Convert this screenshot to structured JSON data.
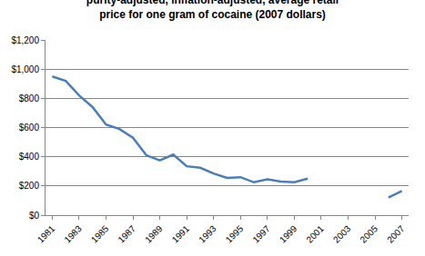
{
  "chart_data": {
    "type": "line",
    "title": [
      "purity-adjusted, inflation-adjusted, average retail",
      "price for one gram of cocaine (2007 dollars)"
    ],
    "x": [
      1981,
      1982,
      1983,
      1984,
      1985,
      1986,
      1987,
      1988,
      1989,
      1990,
      1991,
      1992,
      1993,
      1994,
      1995,
      1996,
      1997,
      1998,
      1999,
      2000,
      2001,
      2002,
      2003,
      2004,
      2005,
      2006,
      2007
    ],
    "values": [
      950,
      920,
      820,
      740,
      620,
      590,
      530,
      410,
      375,
      415,
      335,
      325,
      285,
      255,
      260,
      225,
      245,
      230,
      225,
      250,
      null,
      null,
      null,
      null,
      null,
      120,
      165
    ],
    "color": "#4a7ebb",
    "xlim": [
      1980.5,
      2007.5
    ],
    "xticks": [
      1981,
      1983,
      1985,
      1987,
      1989,
      1991,
      1993,
      1995,
      1997,
      1999,
      2001,
      2003,
      2005,
      2007
    ],
    "ylim": [
      0,
      1200
    ],
    "yticks": [
      {
        "value": 0,
        "label": "$0"
      },
      {
        "value": 200,
        "label": "$200"
      },
      {
        "value": 400,
        "label": "$400"
      },
      {
        "value": 600,
        "label": "$600"
      },
      {
        "value": 800,
        "label": "$800"
      },
      {
        "value": 1000,
        "label": "$1,000"
      },
      {
        "value": 1200,
        "label": "$1,200"
      }
    ],
    "grid": true
  }
}
